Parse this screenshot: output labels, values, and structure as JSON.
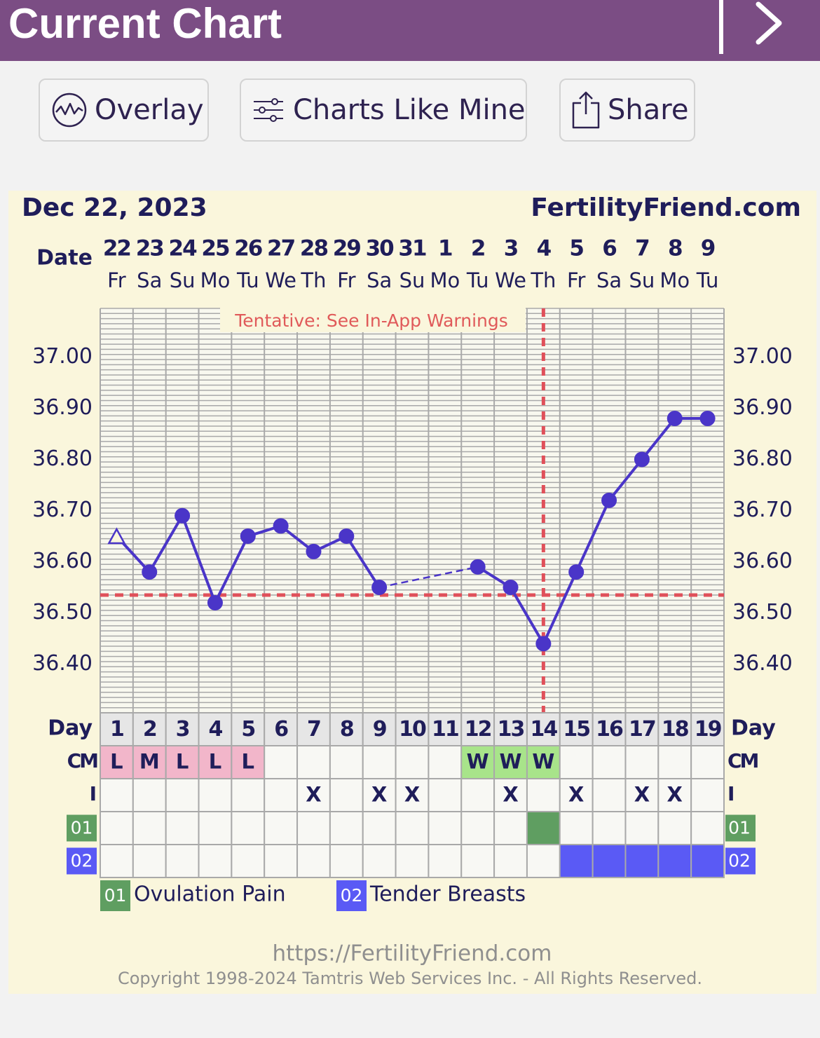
{
  "header": {
    "title": "Current Chart",
    "next_icon": "chevron-right-icon"
  },
  "toolbar": {
    "overlay_label": "Overlay",
    "charts_like_mine_label": "Charts Like Mine",
    "share_label": "Share"
  },
  "chart_data": {
    "type": "line",
    "title": "Dec 22, 2023",
    "brand": "FertilityFriend.com",
    "tentative_warning": "Tentative: See In-App Warnings",
    "date_row_label": "Date",
    "dates": [
      "22",
      "23",
      "24",
      "25",
      "26",
      "27",
      "28",
      "29",
      "30",
      "31",
      "1",
      "2",
      "3",
      "4",
      "5",
      "6",
      "7",
      "8",
      "9"
    ],
    "weekdays": [
      "Fr",
      "Sa",
      "Su",
      "Mo",
      "Tu",
      "We",
      "Th",
      "Fr",
      "Sa",
      "Su",
      "Mo",
      "Tu",
      "We",
      "Th",
      "Fr",
      "Sa",
      "Su",
      "Mo",
      "Tu"
    ],
    "y_ticks": [
      "37.00",
      "36.90",
      "36.80",
      "36.70",
      "36.60",
      "36.50",
      "36.40"
    ],
    "y_tick_values": [
      37.0,
      36.9,
      36.8,
      36.7,
      36.6,
      36.5,
      36.4
    ],
    "ylim": [
      36.305,
      37.095
    ],
    "temperatures": [
      36.65,
      36.58,
      36.69,
      36.52,
      36.65,
      36.67,
      36.62,
      36.65,
      36.55,
      null,
      null,
      36.59,
      36.55,
      36.44,
      36.58,
      36.72,
      36.8,
      36.88,
      36.88
    ],
    "first_point_open_triangle": true,
    "coverline": 36.535,
    "ovulation_day": 14,
    "day_row_label": "Day",
    "days": [
      "1",
      "2",
      "3",
      "4",
      "5",
      "6",
      "7",
      "8",
      "9",
      "10",
      "11",
      "12",
      "13",
      "14",
      "15",
      "16",
      "17",
      "18",
      "19"
    ],
    "cm_row_label": "CM",
    "cm": [
      "L",
      "M",
      "L",
      "L",
      "L",
      "",
      "",
      "",
      "",
      "",
      "",
      "W",
      "W",
      "W",
      "",
      "",
      "",
      "",
      ""
    ],
    "i_row_label": "I",
    "intercourse": [
      "",
      "",
      "",
      "",
      "",
      "",
      "X",
      "",
      "X",
      "X",
      "",
      "",
      "X",
      "",
      "X",
      "",
      "X",
      "X",
      ""
    ],
    "symptom_rows": [
      {
        "code": "01",
        "name": "Ovulation Pain",
        "color": "#5f9e61",
        "days": [
          14
        ]
      },
      {
        "code": "02",
        "name": "Tender Breasts",
        "color": "#5a5af5",
        "days": [
          15,
          16,
          17,
          18,
          19
        ]
      }
    ],
    "footer_url": "https://FertilityFriend.com",
    "footer_copyright": "Copyright 1998-2024 Tamtris Web Services Inc. - All Rights Reserved."
  },
  "colors": {
    "header": "#7b4d84",
    "chart_bg": "#faf6dc",
    "line": "#4a35c8",
    "coverline": "#e0505a",
    "menses": "#f2b6ca",
    "fertile_cm": "#a8e48a",
    "ovulation_pain": "#5f9e61",
    "tender_breasts": "#5a5af5"
  }
}
